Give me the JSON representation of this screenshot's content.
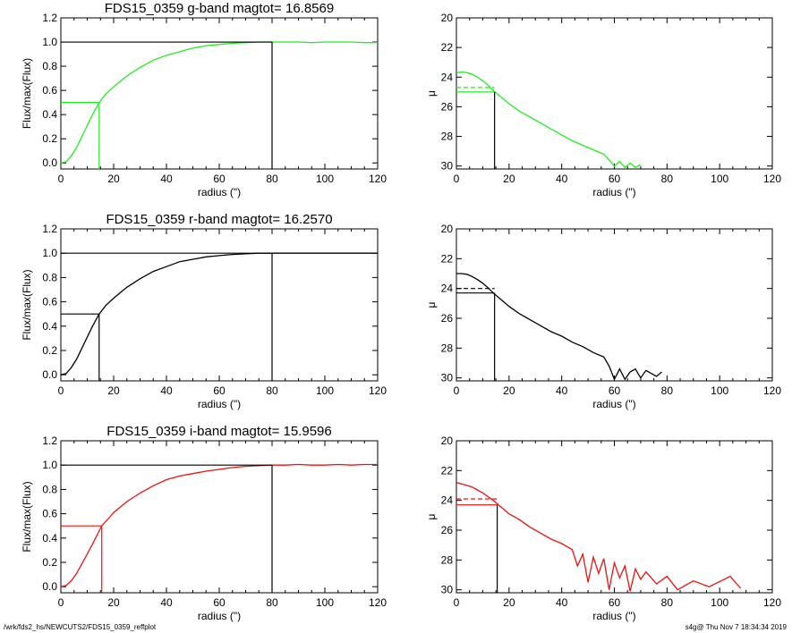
{
  "footer": {
    "left": "/wrk/fds2_hs/NEWCUTS2/FDS15_0359_reffplot",
    "right": "s4g@  Thu Nov  7 18:34:34 2019"
  },
  "chart_data": [
    {
      "type": "line",
      "title": "FDS15_0359 g-band  magtot=      16.8569",
      "xlabel": "radius (\")",
      "ylabel": "Flux/max(Flux)",
      "xlim": [
        0,
        120
      ],
      "ylim": [
        -0.05,
        1.2
      ],
      "xticks": [
        0,
        20,
        40,
        60,
        80,
        100,
        120
      ],
      "yticks": [
        "0.0",
        "0.2",
        "0.4",
        "0.6",
        "0.8",
        "1.0",
        "1.2"
      ],
      "color": "#22ee22",
      "x": [
        0,
        2,
        4,
        6,
        8,
        10,
        12,
        14.5,
        17,
        20,
        25,
        30,
        35,
        40,
        45,
        50,
        55,
        60,
        65,
        70,
        75,
        80,
        85,
        90,
        95,
        100,
        105,
        110,
        115,
        120
      ],
      "y": [
        0.0,
        0.01,
        0.06,
        0.13,
        0.22,
        0.31,
        0.4,
        0.5,
        0.57,
        0.63,
        0.72,
        0.79,
        0.85,
        0.89,
        0.92,
        0.95,
        0.97,
        0.98,
        0.99,
        0.995,
        1.0,
        1.0,
        1.0,
        1.0,
        0.995,
        1.0,
        1.0,
        1.0,
        0.995,
        0.995
      ],
      "reff": 14.5,
      "reff_level": 0.5,
      "rmax": 80
    },
    {
      "type": "line",
      "xlabel": "radius (\")",
      "ylabel": "μ",
      "xlim": [
        0,
        120
      ],
      "ylim": [
        30.2,
        20
      ],
      "xticks": [
        0,
        20,
        40,
        60,
        80,
        100,
        120
      ],
      "yticks": [
        "20",
        "22",
        "24",
        "26",
        "28",
        "30"
      ],
      "color": "#22ee22",
      "x": [
        0,
        2,
        4,
        6,
        8,
        10,
        12,
        14,
        16,
        18,
        20,
        24,
        28,
        32,
        36,
        40,
        44,
        48,
        52,
        56,
        58,
        60,
        62,
        64,
        66,
        68,
        70
      ],
      "y": [
        23.7,
        23.65,
        23.7,
        23.8,
        24.0,
        24.25,
        24.55,
        24.9,
        25.2,
        25.5,
        25.8,
        26.3,
        26.7,
        27.1,
        27.5,
        27.9,
        28.3,
        28.6,
        28.9,
        29.2,
        29.6,
        30.0,
        29.7,
        30.1,
        29.8,
        30.1,
        29.9
      ],
      "reff": 14.5,
      "mu_eff": 25.0,
      "mu_mean": 24.7
    },
    {
      "type": "line",
      "title": "FDS15_0359 r-band  magtot=      16.2570",
      "xlabel": "radius (\")",
      "ylabel": "Flux/max(Flux)",
      "xlim": [
        0,
        120
      ],
      "ylim": [
        -0.05,
        1.2
      ],
      "xticks": [
        0,
        20,
        40,
        60,
        80,
        100,
        120
      ],
      "yticks": [
        "0.0",
        "0.2",
        "0.4",
        "0.6",
        "0.8",
        "1.0",
        "1.2"
      ],
      "color": "#000000",
      "x": [
        0,
        2,
        4,
        6,
        8,
        10,
        12,
        14.5,
        17,
        20,
        25,
        30,
        35,
        40,
        45,
        50,
        55,
        60,
        65,
        70,
        75,
        80,
        85,
        90,
        95,
        100,
        105,
        110,
        115,
        120
      ],
      "y": [
        0.0,
        0.01,
        0.06,
        0.13,
        0.22,
        0.31,
        0.4,
        0.5,
        0.57,
        0.63,
        0.72,
        0.79,
        0.85,
        0.89,
        0.93,
        0.95,
        0.97,
        0.98,
        0.99,
        0.995,
        1.0,
        1.0,
        1.0,
        1.0,
        1.0,
        1.0,
        1.0,
        1.0,
        1.0,
        1.0
      ],
      "reff": 14.5,
      "reff_level": 0.5,
      "rmax": 80
    },
    {
      "type": "line",
      "xlabel": "radius (\")",
      "ylabel": "μ",
      "xlim": [
        0,
        120
      ],
      "ylim": [
        30.2,
        20
      ],
      "xticks": [
        0,
        20,
        40,
        60,
        80,
        100,
        120
      ],
      "yticks": [
        "20",
        "22",
        "24",
        "26",
        "28",
        "30"
      ],
      "color": "#000000",
      "x": [
        0,
        2,
        4,
        6,
        8,
        10,
        12,
        14,
        16,
        18,
        20,
        24,
        28,
        32,
        36,
        40,
        44,
        48,
        52,
        56,
        58,
        60,
        62,
        64,
        66,
        68,
        70,
        72,
        76,
        78
      ],
      "y": [
        23.0,
        23.0,
        23.05,
        23.2,
        23.4,
        23.65,
        23.95,
        24.3,
        24.6,
        24.9,
        25.2,
        25.7,
        26.1,
        26.5,
        26.9,
        27.2,
        27.6,
        27.9,
        28.3,
        28.6,
        29.2,
        30.1,
        29.4,
        30.1,
        29.6,
        29.4,
        30.0,
        29.5,
        29.9,
        29.6
      ],
      "reff": 14.5,
      "mu_eff": 24.3,
      "mu_mean": 24.0
    },
    {
      "type": "line",
      "title": "FDS15_0359 i-band  magtot=      15.9596",
      "xlabel": "radius (\")",
      "ylabel": "Flux/max(Flux)",
      "xlim": [
        0,
        120
      ],
      "ylim": [
        -0.05,
        1.2
      ],
      "xticks": [
        0,
        20,
        40,
        60,
        80,
        100,
        120
      ],
      "yticks": [
        "0.0",
        "0.2",
        "0.4",
        "0.6",
        "0.8",
        "1.0",
        "1.2"
      ],
      "color": "#ee1111",
      "x": [
        0,
        2,
        4,
        6,
        8,
        10,
        12,
        15.5,
        18,
        20,
        25,
        30,
        35,
        40,
        45,
        50,
        55,
        60,
        65,
        70,
        75,
        80,
        85,
        90,
        95,
        100,
        105,
        110,
        115,
        120
      ],
      "y": [
        0.0,
        0.01,
        0.05,
        0.11,
        0.19,
        0.27,
        0.35,
        0.5,
        0.56,
        0.61,
        0.7,
        0.77,
        0.83,
        0.88,
        0.91,
        0.93,
        0.95,
        0.965,
        0.98,
        0.99,
        0.995,
        1.0,
        1.0,
        1.005,
        1.0,
        1.0,
        1.005,
        1.0,
        1.005,
        1.005
      ],
      "reff": 15.5,
      "reff_level": 0.5,
      "rmax": 80
    },
    {
      "type": "line",
      "xlabel": "radius (\")",
      "ylabel": "μ",
      "xlim": [
        0,
        120
      ],
      "ylim": [
        30.2,
        20
      ],
      "xticks": [
        0,
        20,
        40,
        60,
        80,
        100,
        120
      ],
      "yticks": [
        "20",
        "22",
        "24",
        "26",
        "28",
        "30"
      ],
      "color": "#ee1111",
      "x": [
        0,
        2,
        4,
        6,
        8,
        10,
        12,
        14,
        16,
        18,
        20,
        24,
        28,
        32,
        36,
        40,
        44,
        46,
        48,
        50,
        52,
        54,
        56,
        58,
        60,
        62,
        64,
        66,
        68,
        70,
        72,
        76,
        80,
        84,
        90,
        96,
        104,
        108
      ],
      "y": [
        22.8,
        22.9,
        23.0,
        23.1,
        23.3,
        23.5,
        23.75,
        24.0,
        24.3,
        24.6,
        24.9,
        25.3,
        25.8,
        26.2,
        26.6,
        26.9,
        27.3,
        28.4,
        27.6,
        29.5,
        27.8,
        28.9,
        27.9,
        30.0,
        28.2,
        29.2,
        28.4,
        30.1,
        28.6,
        29.3,
        28.8,
        29.6,
        29.1,
        30.0,
        29.4,
        29.8,
        29.1,
        29.9
      ],
      "reff": 15.5,
      "mu_eff": 24.3,
      "mu_mean": 23.9
    }
  ]
}
